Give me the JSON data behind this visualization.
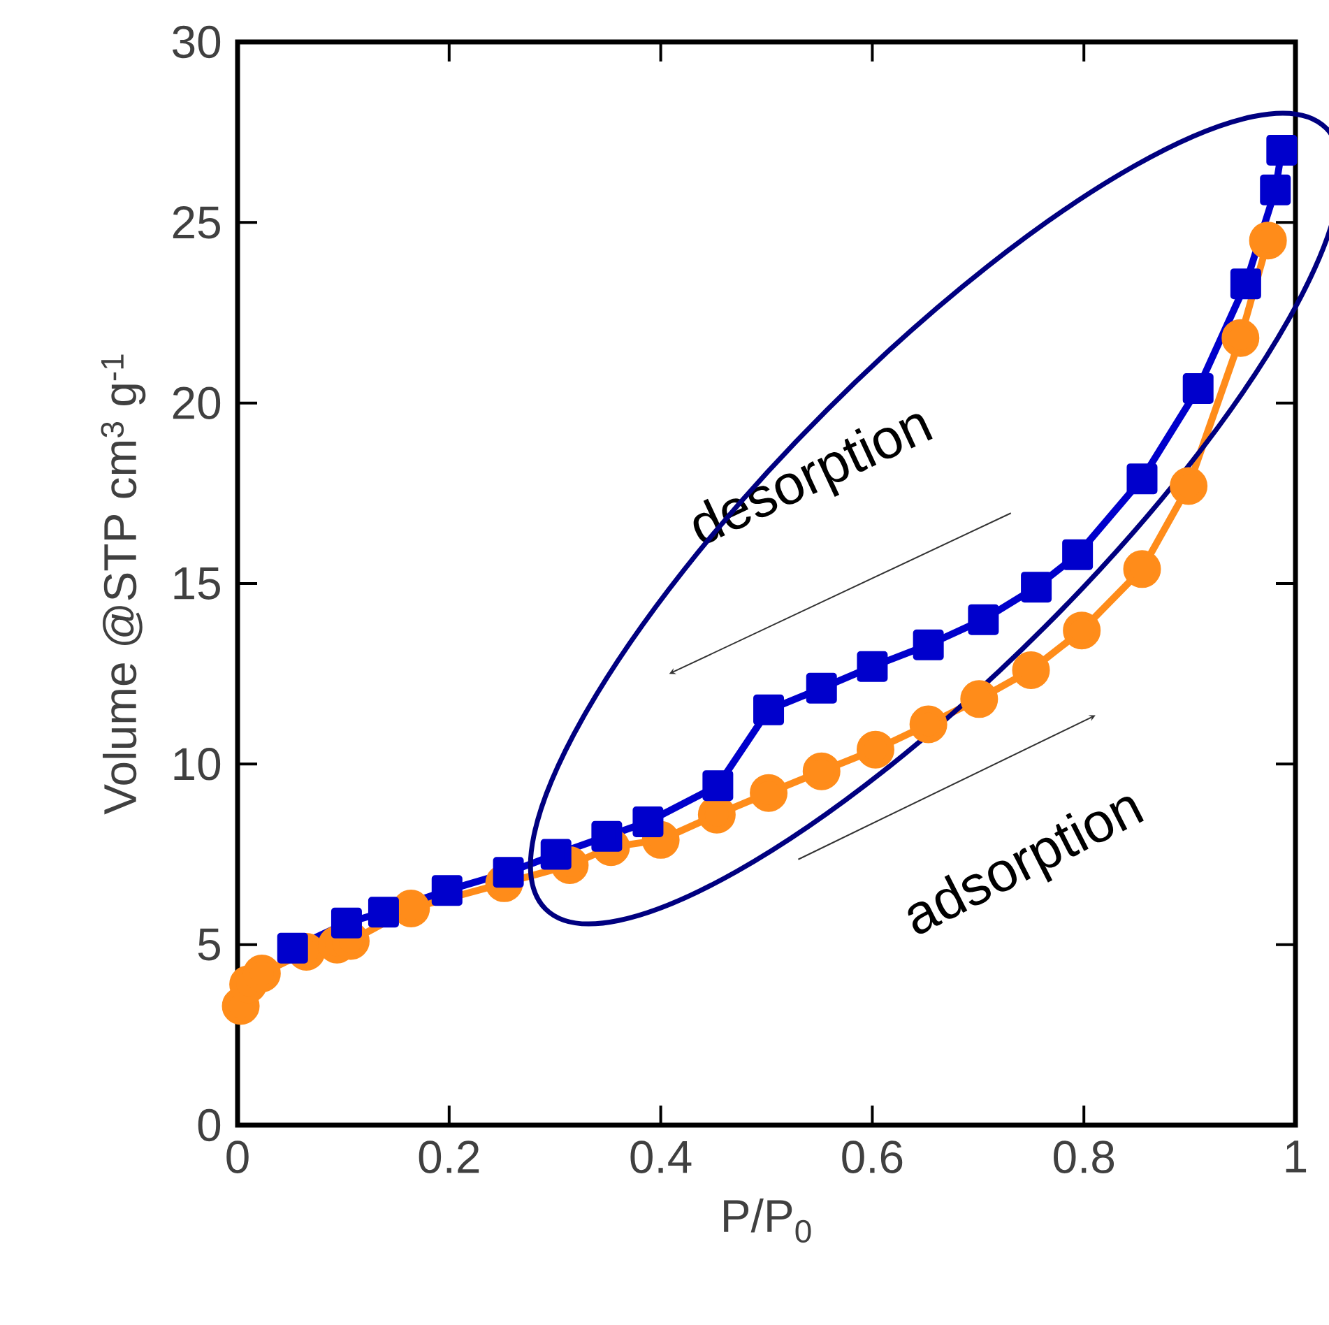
{
  "chart_data": {
    "type": "line",
    "xlabel": "P/P$_{0}$",
    "ylabel": "Volume @STP cm$^{3}$ g$^{-1}$",
    "xlim": [
      0,
      1
    ],
    "ylim": [
      0,
      30
    ],
    "xticks": [
      0,
      0.2,
      0.4,
      0.6,
      0.8,
      1
    ],
    "yticks": [
      0,
      5,
      10,
      15,
      20,
      25,
      30
    ],
    "grid": false,
    "legend": "right",
    "series": [
      {
        "name": "adsorption",
        "color": "#ff8c1a",
        "marker": "circle",
        "line_style": "solid",
        "x": [
          0.003,
          0.01,
          0.023,
          0.065,
          0.094,
          0.107,
          0.164,
          0.252,
          0.314,
          0.353,
          0.4,
          0.453,
          0.502,
          0.552,
          0.603,
          0.653,
          0.701,
          0.75,
          0.798,
          0.855,
          0.899,
          0.948,
          0.974
        ],
        "values": [
          3.3,
          3.9,
          4.2,
          4.8,
          5.0,
          5.1,
          6.0,
          6.7,
          7.2,
          7.7,
          7.9,
          8.6,
          9.2,
          9.8,
          10.4,
          11.1,
          11.8,
          12.6,
          13.7,
          15.4,
          17.7,
          21.8,
          24.5
        ]
      },
      {
        "name": "desorption",
        "color": "#0000cc",
        "marker": "square",
        "line_style": "solid",
        "x": [
          0.987,
          0.981,
          0.953,
          0.908,
          0.855,
          0.794,
          0.755,
          0.705,
          0.653,
          0.6,
          0.552,
          0.502,
          0.454,
          0.388,
          0.349,
          0.301,
          0.256,
          0.198,
          0.138,
          0.103,
          0.052
        ],
        "values": [
          27.0,
          25.9,
          23.3,
          20.4,
          17.9,
          15.8,
          14.9,
          14.0,
          13.3,
          12.7,
          12.1,
          11.5,
          9.4,
          8.4,
          8.0,
          7.5,
          7.0,
          6.5,
          5.9,
          5.6,
          4.9
        ]
      }
    ]
  }
}
